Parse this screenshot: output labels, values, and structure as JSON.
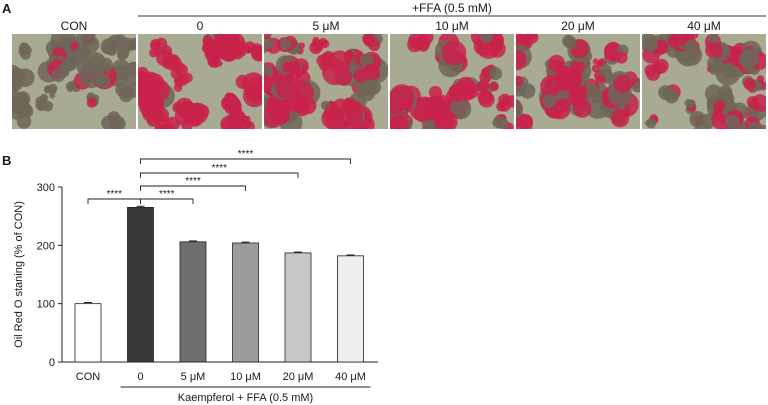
{
  "panel_a": {
    "label": "A",
    "group_header": "+FFA (0.5 mM)",
    "image_labels": [
      "CON",
      "0",
      "5 μM",
      "10 μM",
      "20 μM",
      "40 μM"
    ],
    "stain_levels": [
      0.05,
      0.95,
      0.75,
      0.72,
      0.6,
      0.5
    ],
    "colors": {
      "background": "#a9aa92",
      "cell_unstained": "#6e6658",
      "stain": "#c8224a"
    }
  },
  "panel_b": {
    "label": "B",
    "chart_data": {
      "type": "bar",
      "title": "",
      "ylabel": "Oil Red O staning (% of CON)",
      "xlabel": "Kaempferol + FFA (0.5 mM)",
      "categories": [
        "CON",
        "0",
        "5 μM",
        "10 μM",
        "20 μM",
        "40 μM"
      ],
      "values": [
        100,
        265,
        206,
        204,
        187,
        182
      ],
      "errors": [
        2,
        2,
        1.5,
        1.5,
        1.5,
        1.5
      ],
      "bar_colors": [
        "#ffffff",
        "#3a3836",
        "#6f6f6f",
        "#9c9c9c",
        "#c8c8c8",
        "#efefef"
      ],
      "ylim": [
        0,
        300
      ],
      "yticks": [
        0,
        100,
        200,
        300
      ],
      "grid": false,
      "significance": [
        {
          "from": 0,
          "to": 1,
          "label": "****"
        },
        {
          "from": 1,
          "to": 2,
          "label": "****"
        },
        {
          "from": 1,
          "to": 3,
          "label": "****"
        },
        {
          "from": 1,
          "to": 4,
          "label": "****"
        },
        {
          "from": 1,
          "to": 5,
          "label": "****"
        }
      ]
    }
  }
}
